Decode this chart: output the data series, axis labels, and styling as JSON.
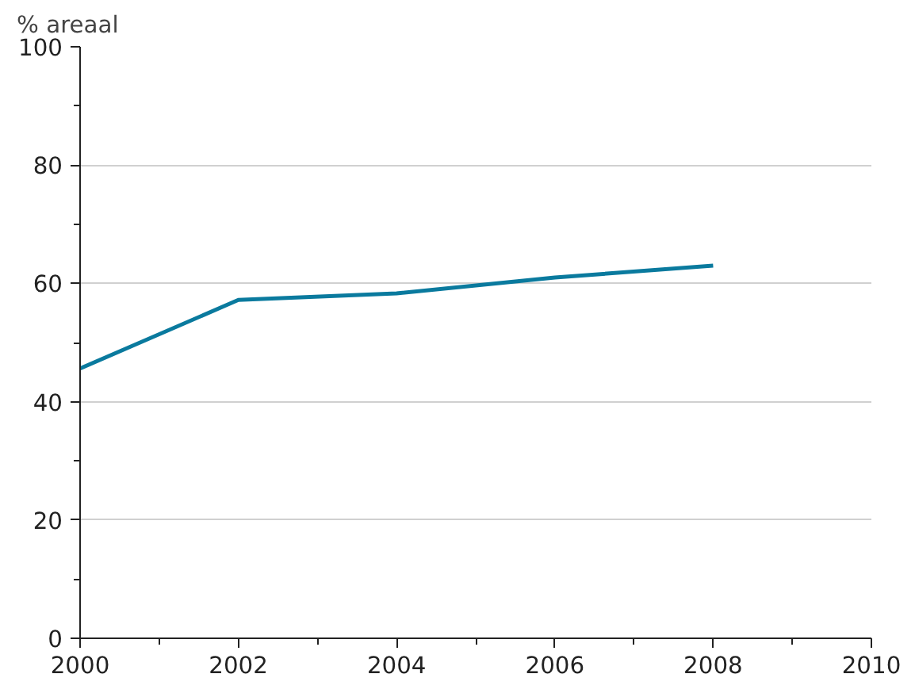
{
  "chart_data": {
    "type": "line",
    "ylabel": "% areaal",
    "x": [
      2000,
      2002,
      2004,
      2006,
      2008
    ],
    "series": [
      {
        "color": "#0a7a9e",
        "values": [
          45.6,
          57.2,
          58.3,
          61.0,
          63.0
        ]
      }
    ],
    "xlim": [
      2000,
      2010
    ],
    "xticks": [
      2000,
      2002,
      2004,
      2006,
      2008,
      2010
    ],
    "ylim": [
      0,
      100
    ],
    "yticks": [
      0,
      20,
      40,
      60,
      80,
      100
    ],
    "grid": "y",
    "marker": "none",
    "line_style": "solid"
  }
}
